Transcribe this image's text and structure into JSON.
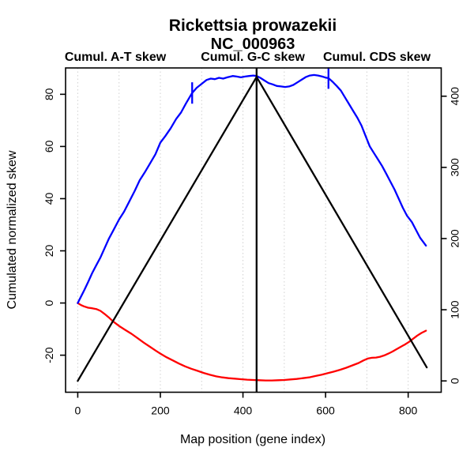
{
  "title": "Rickettsia prowazekii",
  "subtitle": "NC_000963",
  "legend": [
    {
      "label": "Cumul. A-T skew",
      "color": "#ff0000"
    },
    {
      "label": "Cumul. G-C skew",
      "color": "#0000ff"
    },
    {
      "label": "Cumul. CDS skew",
      "color": "#000000"
    }
  ],
  "chart_data": {
    "type": "line",
    "title": "Rickettsia prowazekii",
    "subtitle": "NC_000963",
    "xlabel": "Map position (gene index)",
    "ylabel_left": "Cumulated normalized skew",
    "ylabel_right": "",
    "x_ticks": [
      0,
      200,
      400,
      600,
      800
    ],
    "y_left_ticks": [
      -20,
      0,
      20,
      40,
      60,
      80
    ],
    "y_right_ticks": [
      0,
      100,
      200,
      300,
      400
    ],
    "x_range": [
      -29.5,
      880
    ],
    "y_left_range": [
      -34.2,
      90.1
    ],
    "y_right_range": [
      -15.9,
      439.7
    ],
    "grid": true,
    "gridlines_x": [
      0,
      100,
      200,
      300,
      400,
      500,
      600,
      700,
      800
    ],
    "grid_color": "#d0d0d0",
    "vline_x": 433,
    "markers": [
      {
        "x": 277,
        "y": 80.5,
        "half_height": 4.1,
        "color": "#0000ff"
      },
      {
        "x": 607,
        "y": 86.2,
        "half_height": 4.1,
        "color": "#0000ff"
      }
    ],
    "series": [
      {
        "name": "Cumul. A-T skew",
        "color": "#ff0000",
        "axis": "left",
        "points": [
          [
            0,
            0
          ],
          [
            8,
            -0.8
          ],
          [
            15,
            -1.3
          ],
          [
            25,
            -1.8
          ],
          [
            35,
            -2
          ],
          [
            45,
            -2.3
          ],
          [
            55,
            -3
          ],
          [
            65,
            -4.2
          ],
          [
            75,
            -5.5
          ],
          [
            85,
            -7
          ],
          [
            100,
            -8.8
          ],
          [
            115,
            -10.3
          ],
          [
            130,
            -11.8
          ],
          [
            145,
            -13.5
          ],
          [
            160,
            -15.2
          ],
          [
            175,
            -16.8
          ],
          [
            190,
            -18.4
          ],
          [
            200,
            -19.4
          ],
          [
            215,
            -20.8
          ],
          [
            230,
            -22
          ],
          [
            245,
            -23.2
          ],
          [
            260,
            -24.3
          ],
          [
            275,
            -25.2
          ],
          [
            290,
            -26
          ],
          [
            305,
            -26.8
          ],
          [
            320,
            -27.5
          ],
          [
            335,
            -28.1
          ],
          [
            350,
            -28.5
          ],
          [
            365,
            -28.8
          ],
          [
            380,
            -29
          ],
          [
            395,
            -29.2
          ],
          [
            410,
            -29.4
          ],
          [
            425,
            -29.5
          ],
          [
            440,
            -29.6
          ],
          [
            455,
            -29.7
          ],
          [
            470,
            -29.7
          ],
          [
            485,
            -29.6
          ],
          [
            500,
            -29.5
          ],
          [
            515,
            -29.3
          ],
          [
            530,
            -29.1
          ],
          [
            545,
            -28.8
          ],
          [
            560,
            -28.5
          ],
          [
            575,
            -28
          ],
          [
            590,
            -27.5
          ],
          [
            605,
            -26.9
          ],
          [
            620,
            -26.3
          ],
          [
            635,
            -25.6
          ],
          [
            650,
            -24.8
          ],
          [
            665,
            -23.9
          ],
          [
            680,
            -23
          ],
          [
            692,
            -22
          ],
          [
            702,
            -21.3
          ],
          [
            712,
            -21
          ],
          [
            722,
            -20.9
          ],
          [
            732,
            -20.6
          ],
          [
            742,
            -20.1
          ],
          [
            752,
            -19.4
          ],
          [
            762,
            -18.6
          ],
          [
            772,
            -17.7
          ],
          [
            782,
            -16.8
          ],
          [
            792,
            -15.9
          ],
          [
            802,
            -14.9
          ],
          [
            812,
            -13.7
          ],
          [
            822,
            -12.5
          ],
          [
            832,
            -11.5
          ],
          [
            843,
            -10.6
          ]
        ]
      },
      {
        "name": "Cumul. G-C skew",
        "color": "#0000ff",
        "axis": "left",
        "points": [
          [
            0,
            0
          ],
          [
            8,
            2.5
          ],
          [
            16,
            5
          ],
          [
            25,
            8
          ],
          [
            35,
            11.5
          ],
          [
            45,
            14.5
          ],
          [
            55,
            17.5
          ],
          [
            65,
            21
          ],
          [
            75,
            24.5
          ],
          [
            85,
            27.5
          ],
          [
            100,
            32
          ],
          [
            112,
            35
          ],
          [
            125,
            39
          ],
          [
            138,
            43
          ],
          [
            150,
            47
          ],
          [
            162,
            50
          ],
          [
            175,
            53.5
          ],
          [
            188,
            57
          ],
          [
            200,
            61.5
          ],
          [
            212,
            64
          ],
          [
            225,
            67
          ],
          [
            238,
            70.5
          ],
          [
            250,
            73
          ],
          [
            262,
            76.5
          ],
          [
            277,
            80.5
          ],
          [
            288,
            82.5
          ],
          [
            300,
            84
          ],
          [
            312,
            85.5
          ],
          [
            322,
            86
          ],
          [
            332,
            85.8
          ],
          [
            342,
            86.3
          ],
          [
            352,
            86
          ],
          [
            362,
            86.5
          ],
          [
            375,
            87
          ],
          [
            385,
            86.8
          ],
          [
            395,
            86.5
          ],
          [
            405,
            86.8
          ],
          [
            415,
            87
          ],
          [
            425,
            87.2
          ],
          [
            433,
            87
          ],
          [
            442,
            86.3
          ],
          [
            452,
            85.3
          ],
          [
            462,
            84.3
          ],
          [
            472,
            83.8
          ],
          [
            482,
            83.2
          ],
          [
            492,
            83
          ],
          [
            502,
            82.8
          ],
          [
            512,
            83
          ],
          [
            522,
            83.6
          ],
          [
            532,
            84.6
          ],
          [
            542,
            85.6
          ],
          [
            552,
            86.6
          ],
          [
            562,
            87.2
          ],
          [
            572,
            87.4
          ],
          [
            582,
            87.2
          ],
          [
            592,
            86.8
          ],
          [
            600,
            86.4
          ],
          [
            607,
            86.2
          ],
          [
            617,
            84.8
          ],
          [
            627,
            83.2
          ],
          [
            637,
            81.4
          ],
          [
            647,
            78.8
          ],
          [
            657,
            76.2
          ],
          [
            667,
            73.6
          ],
          [
            677,
            71
          ],
          [
            687,
            68
          ],
          [
            697,
            64
          ],
          [
            707,
            60
          ],
          [
            717,
            57.5
          ],
          [
            727,
            55
          ],
          [
            737,
            52.5
          ],
          [
            747,
            49.5
          ],
          [
            757,
            46.5
          ],
          [
            767,
            43.5
          ],
          [
            777,
            40
          ],
          [
            787,
            36.5
          ],
          [
            797,
            33.5
          ],
          [
            809,
            31
          ],
          [
            819,
            28
          ],
          [
            829,
            25
          ],
          [
            836,
            23.5
          ],
          [
            843,
            22
          ]
        ]
      },
      {
        "name": "Cumul. CDS skew",
        "color": "#000000",
        "axis": "right",
        "points": [
          [
            0,
            0
          ],
          [
            433,
            427
          ],
          [
            845,
            19
          ]
        ]
      }
    ]
  }
}
